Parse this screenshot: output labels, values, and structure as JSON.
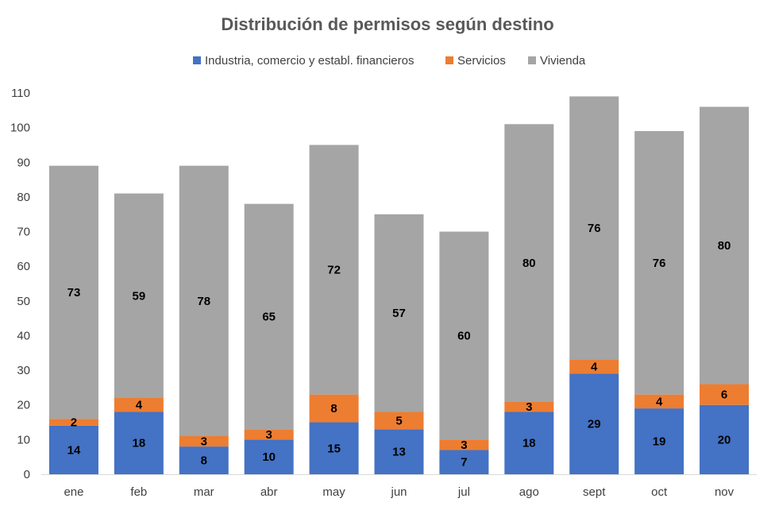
{
  "chart_data": {
    "type": "bar",
    "stacked": true,
    "title": "Distribución de permisos según destino",
    "xlabel": "",
    "ylabel": "",
    "ylim": [
      0,
      110
    ],
    "yticks": [
      0,
      10,
      20,
      30,
      40,
      50,
      60,
      70,
      80,
      90,
      100,
      110
    ],
    "grid": false,
    "legend_position": "top",
    "categories": [
      "ene",
      "feb",
      "mar",
      "abr",
      "may",
      "jun",
      "jul",
      "ago",
      "sept",
      "oct",
      "nov"
    ],
    "series": [
      {
        "name": "Industria, comercio y establ. financieros",
        "color": "#4472C4",
        "values": [
          14,
          18,
          8,
          10,
          15,
          13,
          7,
          18,
          29,
          19,
          20
        ]
      },
      {
        "name": "Servicios",
        "color": "#ED7D31",
        "values": [
          2,
          4,
          3,
          3,
          8,
          5,
          3,
          3,
          4,
          4,
          6
        ]
      },
      {
        "name": "Vivienda",
        "color": "#A5A5A5",
        "values": [
          73,
          59,
          78,
          65,
          72,
          57,
          60,
          80,
          76,
          76,
          80
        ]
      }
    ]
  }
}
